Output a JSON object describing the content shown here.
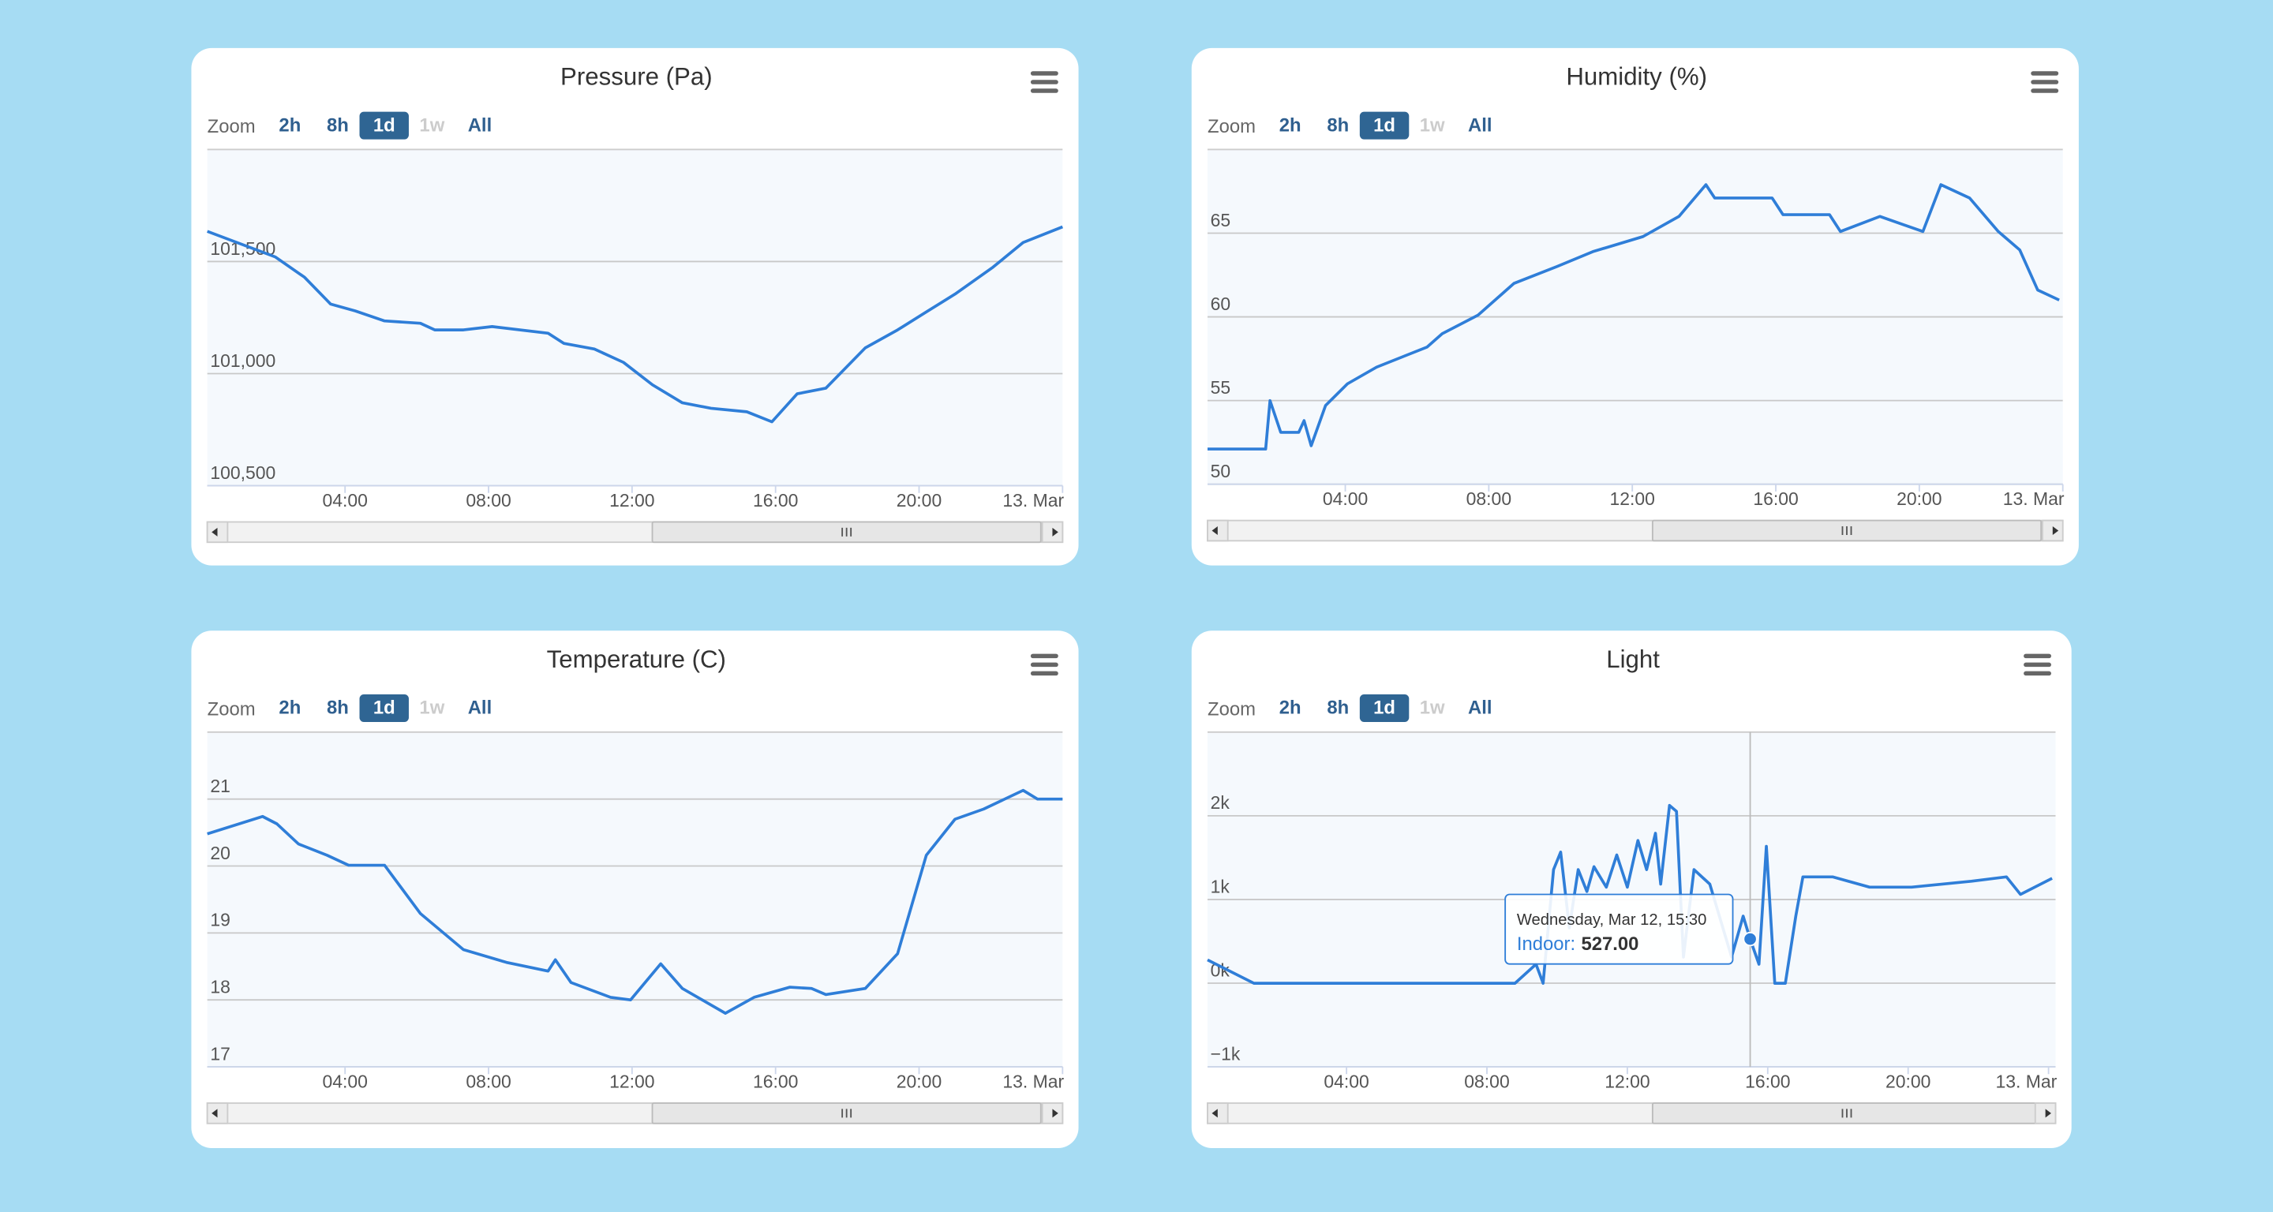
{
  "chart_data": [
    {
      "type": "line",
      "title": "Pressure (Pa)",
      "range_selector": {
        "label": "Zoom",
        "buttons": [
          "2h",
          "8h",
          "1d",
          "1w",
          "All"
        ],
        "selected": 2,
        "disabled": [
          3
        ]
      },
      "x": [
        0.16,
        2.06,
        2.87,
        3.6,
        4.28,
        5.1,
        6.1,
        6.5,
        7.3,
        8.1,
        9.66,
        10.1,
        10.95,
        11.76,
        12.57,
        13.4,
        14.2,
        15.2,
        15.9,
        16.6,
        17.4,
        18.5,
        19.4,
        20.2,
        21.0,
        22.06,
        22.9,
        24
      ],
      "series": [
        {
          "color": "#2f7ed8",
          "values": [
            101635,
            101520,
            101430,
            101310,
            101280,
            101235,
            101225,
            101195,
            101195,
            101210,
            101180,
            101135,
            101110,
            101050,
            100950,
            100870,
            100845,
            100830,
            100785,
            100910,
            100935,
            101115,
            101195,
            101275,
            101355,
            101475,
            101585,
            101655
          ]
        }
      ],
      "xlim": [
        0.16,
        24
      ],
      "xticks": [
        {
          "value": 4,
          "label": "04:00"
        },
        {
          "value": 8,
          "label": "08:00"
        },
        {
          "value": 12,
          "label": "12:00"
        },
        {
          "value": 16,
          "label": "16:00"
        },
        {
          "value": 20,
          "label": "20:00"
        },
        {
          "value": 24,
          "label": "13. Mar"
        }
      ],
      "ylim": [
        100500,
        102000
      ],
      "yticks": [
        {
          "value": 100500,
          "label": "100,500"
        },
        {
          "value": 101000,
          "label": "101,000"
        },
        {
          "value": 101500,
          "label": "101,500"
        }
      ],
      "grid": true
    },
    {
      "type": "line",
      "title": "Humidity (%)",
      "range_selector": {
        "label": "Zoom",
        "buttons": [
          "2h",
          "8h",
          "1d",
          "1w",
          "All"
        ],
        "selected": 2,
        "disabled": [
          3
        ]
      },
      "x": [
        0.16,
        1.78,
        1.9,
        2.2,
        2.7,
        2.85,
        3.05,
        3.45,
        4.06,
        4.87,
        6.28,
        6.7,
        7.7,
        8.7,
        9.9,
        10.9,
        12.3,
        13.3,
        14.05,
        14.3,
        15.9,
        16.2,
        17.5,
        17.8,
        18.9,
        20.1,
        20.6,
        21.4,
        22.2,
        22.8,
        23.3,
        23.9
      ],
      "series": [
        {
          "color": "#2f7ed8",
          "values": [
            52.1,
            52.1,
            55,
            53.1,
            53.1,
            53.8,
            52.3,
            54.7,
            56,
            57,
            58.2,
            59,
            60.1,
            62,
            63,
            63.9,
            64.8,
            66,
            67.9,
            67.1,
            67.1,
            66.1,
            66.1,
            65.1,
            66,
            65.1,
            67.9,
            67.1,
            65.1,
            64,
            61.6,
            61
          ]
        }
      ],
      "xlim": [
        0.16,
        24
      ],
      "xticks": [
        {
          "value": 4,
          "label": "04:00"
        },
        {
          "value": 8,
          "label": "08:00"
        },
        {
          "value": 12,
          "label": "12:00"
        },
        {
          "value": 16,
          "label": "16:00"
        },
        {
          "value": 20,
          "label": "20:00"
        },
        {
          "value": 24,
          "label": "13. Mar"
        }
      ],
      "ylim": [
        50,
        70
      ],
      "yticks": [
        50,
        55,
        60,
        65
      ],
      "grid": true
    },
    {
      "type": "line",
      "title": "Temperature (C)",
      "range_selector": {
        "label": "Zoom",
        "buttons": [
          "2h",
          "8h",
          "1d",
          "1w",
          "All"
        ],
        "selected": 2,
        "disabled": [
          3
        ]
      },
      "x": [
        0.16,
        1.7,
        2.1,
        2.7,
        3.5,
        4.1,
        5.1,
        6.1,
        7.3,
        8.5,
        9.66,
        9.86,
        10.3,
        11.4,
        11.96,
        12.8,
        13.4,
        14.6,
        15.4,
        16.4,
        17.0,
        17.4,
        18.5,
        19.4,
        20.2,
        21.0,
        21.8,
        22.9,
        23.3,
        24
      ],
      "series": [
        {
          "color": "#2f7ed8",
          "values": [
            20.48,
            20.74,
            20.63,
            20.33,
            20.16,
            20.01,
            20.01,
            19.29,
            18.75,
            18.56,
            18.43,
            18.6,
            18.26,
            18.04,
            18.0,
            18.54,
            18.17,
            17.8,
            18.04,
            18.19,
            18.17,
            18.08,
            18.17,
            18.69,
            20.16,
            20.7,
            20.85,
            21.13,
            21.0,
            21.0
          ]
        }
      ],
      "xlim": [
        0.16,
        24
      ],
      "xticks": [
        {
          "value": 4,
          "label": "04:00"
        },
        {
          "value": 8,
          "label": "08:00"
        },
        {
          "value": 12,
          "label": "12:00"
        },
        {
          "value": 16,
          "label": "16:00"
        },
        {
          "value": 20,
          "label": "20:00"
        },
        {
          "value": 24,
          "label": "13. Mar"
        }
      ],
      "ylim": [
        17,
        22
      ],
      "yticks": [
        17,
        18,
        19,
        20,
        21
      ],
      "grid": true
    },
    {
      "type": "line",
      "title": "Light",
      "range_selector": {
        "label": "Zoom",
        "buttons": [
          "2h",
          "8h",
          "1d",
          "1w",
          "All"
        ],
        "selected": 2,
        "disabled": [
          3
        ]
      },
      "x": [
        0.04,
        1.36,
        8.8,
        9.4,
        9.6,
        9.9,
        10.1,
        10.35,
        10.6,
        10.85,
        11.05,
        11.4,
        11.7,
        12.0,
        12.3,
        12.55,
        12.8,
        12.95,
        13.2,
        13.4,
        13.6,
        13.9,
        14.35,
        14.97,
        15.3,
        15.5,
        15.75,
        15.96,
        16.2,
        16.5,
        16.8,
        17.0,
        17.85,
        18.9,
        20.1,
        21.8,
        22.8,
        23.2,
        24.1
      ],
      "series": [
        {
          "color": "#2f7ed8",
          "values": [
            278,
            0,
            0,
            226,
            0,
            1357,
            1566,
            661,
            1357,
            1096,
            1392,
            1148,
            1531,
            1148,
            1705,
            1357,
            1792,
            1183,
            2123,
            2053,
            313,
            1357,
            1183,
            313,
            800,
            527,
            226,
            1636,
            0,
            0,
            800,
            1270,
            1270,
            1148,
            1148,
            1218,
            1270,
            1061,
            1253
          ]
        }
      ],
      "xlim": [
        0.04,
        24.2
      ],
      "xticks": [
        {
          "value": 4,
          "label": "04:00"
        },
        {
          "value": 8,
          "label": "08:00"
        },
        {
          "value": 12,
          "label": "12:00"
        },
        {
          "value": 16,
          "label": "16:00"
        },
        {
          "value": 20,
          "label": "20:00"
        },
        {
          "value": 24,
          "label": "13. Mar"
        }
      ],
      "ylim": [
        -1000,
        3000
      ],
      "yticks": [
        {
          "value": -1000,
          "label": "−1k"
        },
        {
          "value": 0,
          "label": "0k"
        },
        {
          "value": 1000,
          "label": "1k"
        },
        {
          "value": 2000,
          "label": "2k"
        }
      ],
      "grid": true,
      "tooltip": {
        "header": "Wednesday, Mar 12, 15:30",
        "label": "Indoor:",
        "value": 527,
        "value_label": "527.00",
        "x": 15.5
      }
    }
  ]
}
